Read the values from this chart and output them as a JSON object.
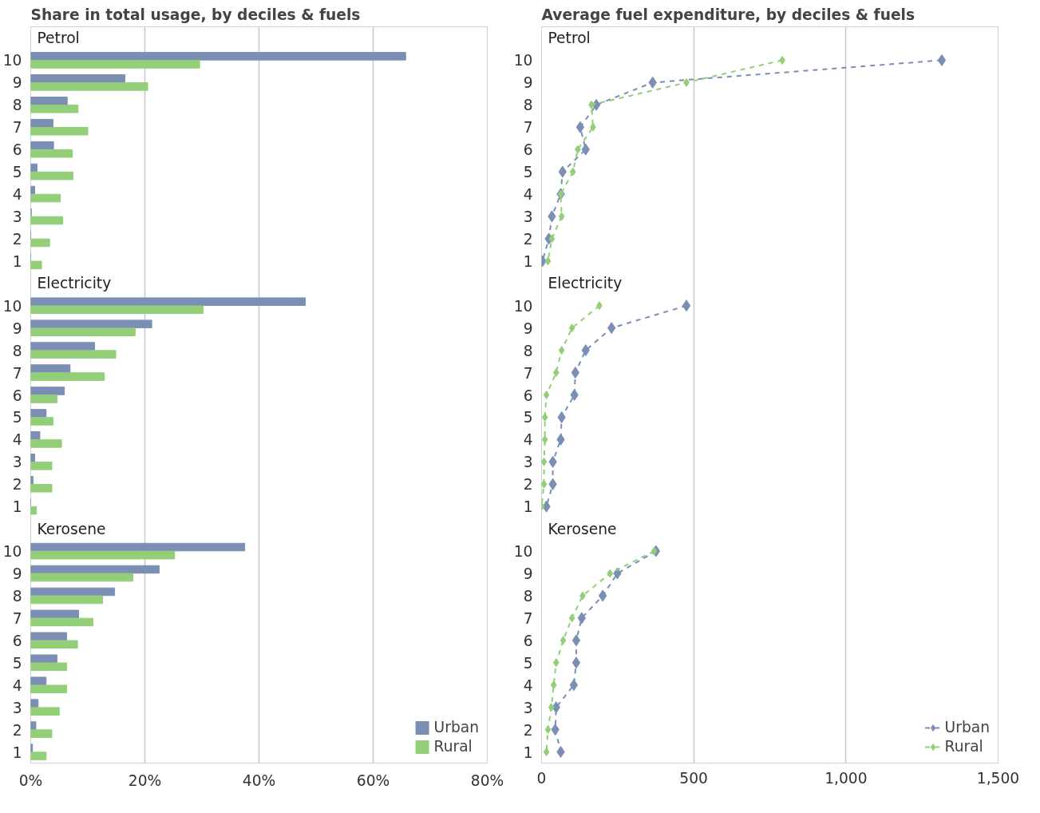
{
  "chart_data": [
    {
      "type": "bar",
      "orientation": "horizontal",
      "title": "Share in total usage, by deciles & fuels",
      "categories": [
        null,
        "10",
        "9",
        "8",
        "7",
        "6",
        "5",
        "4",
        "3",
        "2",
        "1",
        null,
        "10",
        "9",
        "8",
        "7",
        "6",
        "5",
        "4",
        "3",
        "2",
        "1",
        null,
        "10",
        "9",
        "8",
        "7",
        "6",
        "5",
        "4",
        "3",
        "2",
        "1"
      ],
      "series": [
        {
          "name": "Urban",
          "color": "#7b8fb5",
          "values": [
            null,
            65.7,
            16.5,
            6.4,
            3.9,
            4.0,
            1.1,
            0.7,
            0.1,
            0,
            0,
            null,
            48.1,
            21.2,
            11.2,
            6.9,
            5.9,
            2.7,
            1.6,
            0.7,
            0.4,
            0,
            null,
            37.5,
            22.5,
            14.7,
            8.4,
            6.3,
            4.6,
            2.7,
            1.3,
            0.9,
            0.3
          ]
        },
        {
          "name": "Rural",
          "color": "#93cf78",
          "values": [
            null,
            29.6,
            20.5,
            8.3,
            10.0,
            7.3,
            7.4,
            5.2,
            5.6,
            3.3,
            1.9,
            null,
            30.2,
            18.3,
            14.9,
            12.9,
            4.6,
            3.9,
            5.4,
            3.7,
            3.7,
            1.0,
            null,
            25.2,
            17.9,
            12.6,
            10.9,
            8.2,
            6.3,
            6.3,
            5.0,
            3.7,
            2.7
          ]
        }
      ],
      "xlim": [
        0,
        80
      ],
      "xticks": [
        {
          "value": 0,
          "label": "0%"
        },
        {
          "value": 20,
          "label": "20%"
        },
        {
          "value": 40,
          "label": "40%"
        },
        {
          "value": 60,
          "label": "60%"
        },
        {
          "value": 80,
          "label": "80%"
        }
      ],
      "grid": "x",
      "legend": "bottom right",
      "annotations": [
        "Petrol",
        "Electricity",
        "Kerosene"
      ]
    },
    {
      "type": "line",
      "orientation": "horizontal",
      "title": "Average fuel expenditure, by deciles & fuels",
      "categories": [
        null,
        "10",
        "9",
        "8",
        "7",
        "6",
        "5",
        "4",
        "3",
        "2",
        "1",
        null,
        "10",
        "9",
        "8",
        "7",
        "6",
        "5",
        "4",
        "3",
        "2",
        "1",
        null,
        "10",
        "9",
        "8",
        "7",
        "6",
        "5",
        "4",
        "3",
        "2",
        "1"
      ],
      "series": [
        {
          "name": "Urban",
          "color": "#7b8fb5",
          "values": [
            null,
            1315,
            365,
            180,
            127,
            145,
            69,
            63,
            34,
            24,
            3,
            null,
            476,
            230,
            145,
            111,
            108,
            66,
            63,
            37,
            37,
            16,
            null,
            376,
            249,
            201,
            132,
            114,
            114,
            106,
            48,
            45,
            63
          ]
        },
        {
          "name": "Rural",
          "color": "#93cf78",
          "values": [
            null,
            791,
            476,
            164,
            169,
            119,
            103,
            63,
            66,
            34,
            21,
            null,
            190,
            100,
            66,
            48,
            16,
            11,
            11,
            8,
            8,
            0,
            null,
            370,
            225,
            135,
            100,
            71,
            48,
            40,
            32,
            21,
            16
          ]
        }
      ],
      "xlim": [
        0,
        1500
      ],
      "xticks": [
        {
          "value": 0,
          "label": "0"
        },
        {
          "value": 500,
          "label": "500"
        },
        {
          "value": 1000,
          "label": "1,000"
        },
        {
          "value": 1500,
          "label": "1,500"
        }
      ],
      "grid": "x",
      "legend": "bottom right",
      "marker": "diamond",
      "line_style": "dashed",
      "annotations": [
        "Petrol",
        "Electricity",
        "Kerosene"
      ]
    }
  ]
}
